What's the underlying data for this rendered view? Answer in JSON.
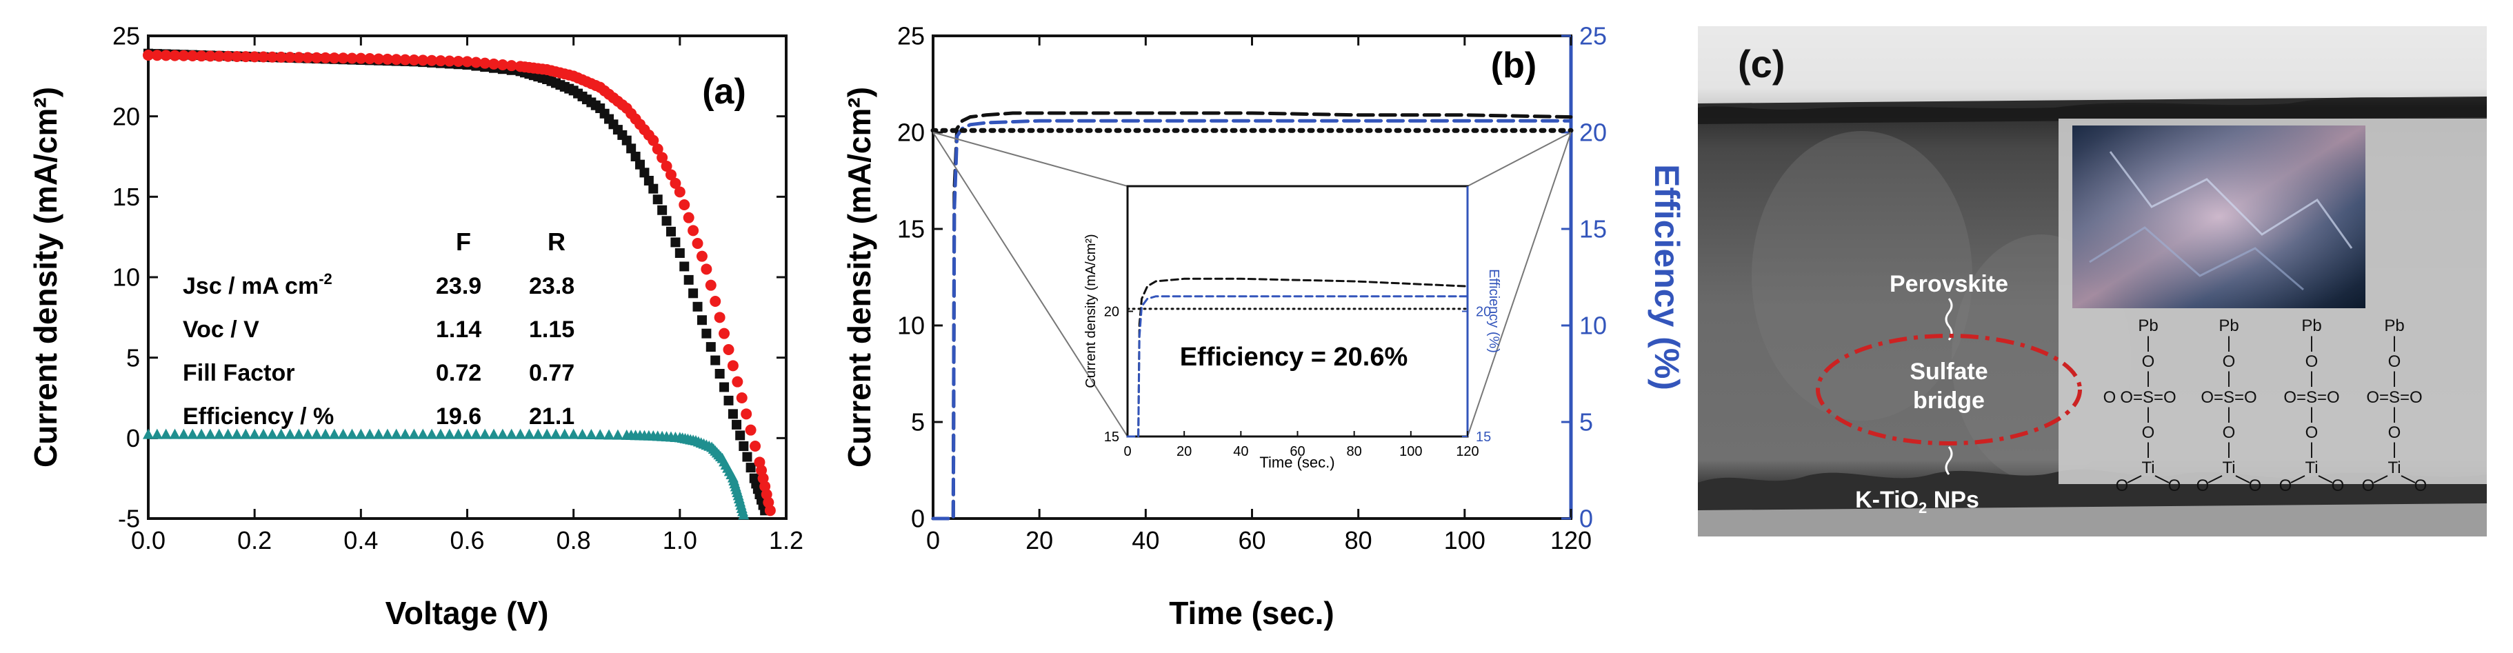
{
  "chart_data": [
    {
      "panel": "(a)",
      "type": "scatter",
      "xlabel": "Voltage (V)",
      "ylabel": "Current density (mA/cm²)",
      "xlim": [
        0.0,
        1.2
      ],
      "ylim": [
        -5,
        25
      ],
      "xticks": [
        "0.0",
        "0.2",
        "0.4",
        "0.6",
        "0.8",
        "1.0",
        "1.2"
      ],
      "yticks": [
        "-5",
        "0",
        "5",
        "10",
        "15",
        "20",
        "25"
      ],
      "series": [
        {
          "color": "#111111",
          "marker": "square",
          "x": [
            0.0,
            0.1,
            0.2,
            0.3,
            0.4,
            0.5,
            0.6,
            0.7,
            0.75,
            0.8,
            0.85,
            0.9,
            0.95,
            1.0,
            1.05,
            1.1,
            1.14,
            1.16
          ],
          "y": [
            23.9,
            23.8,
            23.7,
            23.6,
            23.5,
            23.4,
            23.2,
            22.8,
            22.3,
            21.6,
            20.5,
            18.5,
            15.5,
            11.5,
            6.5,
            1.5,
            -2.5,
            -4.5
          ]
        },
        {
          "color": "#ee1c1c",
          "marker": "circle",
          "x": [
            0.0,
            0.1,
            0.2,
            0.3,
            0.4,
            0.5,
            0.6,
            0.7,
            0.75,
            0.8,
            0.85,
            0.9,
            0.95,
            1.0,
            1.05,
            1.1,
            1.15,
            1.17
          ],
          "y": [
            23.8,
            23.75,
            23.7,
            23.65,
            23.6,
            23.5,
            23.4,
            23.1,
            22.9,
            22.5,
            21.8,
            20.5,
            18.5,
            15.3,
            10.5,
            4.5,
            -1.5,
            -4.5
          ]
        },
        {
          "color": "#1f8f8f",
          "marker": "triangle",
          "x": [
            0.0,
            0.1,
            0.2,
            0.3,
            0.4,
            0.5,
            0.6,
            0.7,
            0.8,
            0.9,
            0.95,
            1.0,
            1.03,
            1.06,
            1.08,
            1.1,
            1.11,
            1.12
          ],
          "y": [
            0.2,
            0.2,
            0.2,
            0.2,
            0.2,
            0.2,
            0.2,
            0.2,
            0.2,
            0.15,
            0.1,
            0.0,
            -0.2,
            -0.6,
            -1.3,
            -2.5,
            -3.6,
            -4.8
          ]
        }
      ],
      "table": {
        "headers": [
          "",
          "F",
          "R"
        ],
        "rows": [
          {
            "label_main": "Jsc / mA cm",
            "label_sup": "-2",
            "f": "23.9",
            "r": "23.8"
          },
          {
            "label_main": "Voc / V",
            "label_sup": "",
            "f": "1.14",
            "r": "1.15"
          },
          {
            "label_main": "Fill Factor",
            "label_sup": "",
            "f": "0.72",
            "r": "0.77"
          },
          {
            "label_main": "Efficiency / %",
            "label_sup": "",
            "f": "19.6",
            "r": "21.1"
          }
        ]
      }
    },
    {
      "panel": "(b)",
      "type": "line",
      "xlabel": "Time (sec.)",
      "ylabel": "Current density (mA/cm²)",
      "ylabel_right": "Efficiency (%)",
      "xlim": [
        0,
        120
      ],
      "ylim": [
        0,
        25
      ],
      "ylim_right": [
        0,
        25
      ],
      "xticks": [
        "0",
        "20",
        "40",
        "60",
        "80",
        "100",
        "120"
      ],
      "yticks": [
        "0",
        "5",
        "10",
        "15",
        "20",
        "25"
      ],
      "yticks_right": [
        "0",
        "5",
        "10",
        "15",
        "20",
        "25"
      ],
      "series": [
        {
          "color": "#111111",
          "style": "dashed",
          "x": [
            0,
            3.8,
            4.0,
            4.5,
            5.5,
            7,
            10,
            15,
            20,
            40,
            60,
            80,
            100,
            120
          ],
          "y": [
            0,
            0,
            17,
            20.2,
            20.6,
            20.8,
            20.9,
            21.0,
            21.0,
            21.0,
            21.0,
            20.9,
            20.9,
            20.8
          ]
        },
        {
          "color": "#3355bb",
          "style": "dashed",
          "x": [
            0,
            3.8,
            4.0,
            4.5,
            5.5,
            7,
            10,
            20,
            40,
            60,
            80,
            100,
            120
          ],
          "y": [
            0,
            0,
            16,
            19.8,
            20.2,
            20.4,
            20.5,
            20.6,
            20.6,
            20.6,
            20.6,
            20.6,
            20.6
          ]
        },
        {
          "color": "#111111",
          "style": "dotted",
          "x": [
            0,
            120
          ],
          "y": [
            20.1,
            20.1
          ]
        }
      ],
      "inset": {
        "xlabel": "Time (sec.)",
        "ylabel": "Current density (mA/cm²)",
        "ylabel_right": "Efficiency (%)",
        "xlim": [
          0,
          120
        ],
        "ylim": [
          15,
          25
        ],
        "xticks": [
          "0",
          "20",
          "40",
          "60",
          "80",
          "100",
          "120"
        ],
        "yticks": [
          "15",
          "20"
        ],
        "yticks_right": [
          "15",
          "20"
        ],
        "annotation": "Efficiency = 20.6%",
        "series": [
          {
            "color": "#111111",
            "style": "dashed",
            "x": [
              0,
              3.8,
              4.2,
              5,
              7,
              10,
              20,
              40,
              60,
              80,
              100,
              120
            ],
            "y": [
              15,
              15,
              19.5,
              20.5,
              21.0,
              21.2,
              21.3,
              21.3,
              21.25,
              21.2,
              21.1,
              21.0
            ]
          },
          {
            "color": "#3355bb",
            "style": "dashed",
            "x": [
              0,
              3.8,
              4.2,
              5,
              7,
              10,
              20,
              40,
              60,
              80,
              100,
              120
            ],
            "y": [
              15,
              15,
              19.0,
              20.2,
              20.5,
              20.6,
              20.6,
              20.6,
              20.6,
              20.6,
              20.6,
              20.6
            ]
          },
          {
            "color": "#111111",
            "style": "dotted",
            "x": [
              0,
              120
            ],
            "y": [
              20.1,
              20.1
            ]
          }
        ]
      }
    }
  ],
  "panel_c": {
    "label": "(c)",
    "layer_labels": {
      "perovskite": "Perovskite",
      "sulfate_bridge": [
        "Sulfate",
        "bridge"
      ],
      "k_tio2_main": "K-TiO",
      "k_tio2_sub": "2",
      "k_tio2_tail": " NPs"
    },
    "structure": {
      "pb": "Pb",
      "o": "O",
      "s": "S",
      "ti": "Ti",
      "bond": "|",
      "equals_o": "O=S=O",
      "o_left": "O"
    }
  },
  "colors": {
    "black_series": "#111111",
    "red_series": "#ee1c1c",
    "teal_series": "#1f8f8f",
    "blue_axis": "#3355bb",
    "callout_ring": "#cc2222",
    "sem_dark": "#5a5a5a"
  }
}
